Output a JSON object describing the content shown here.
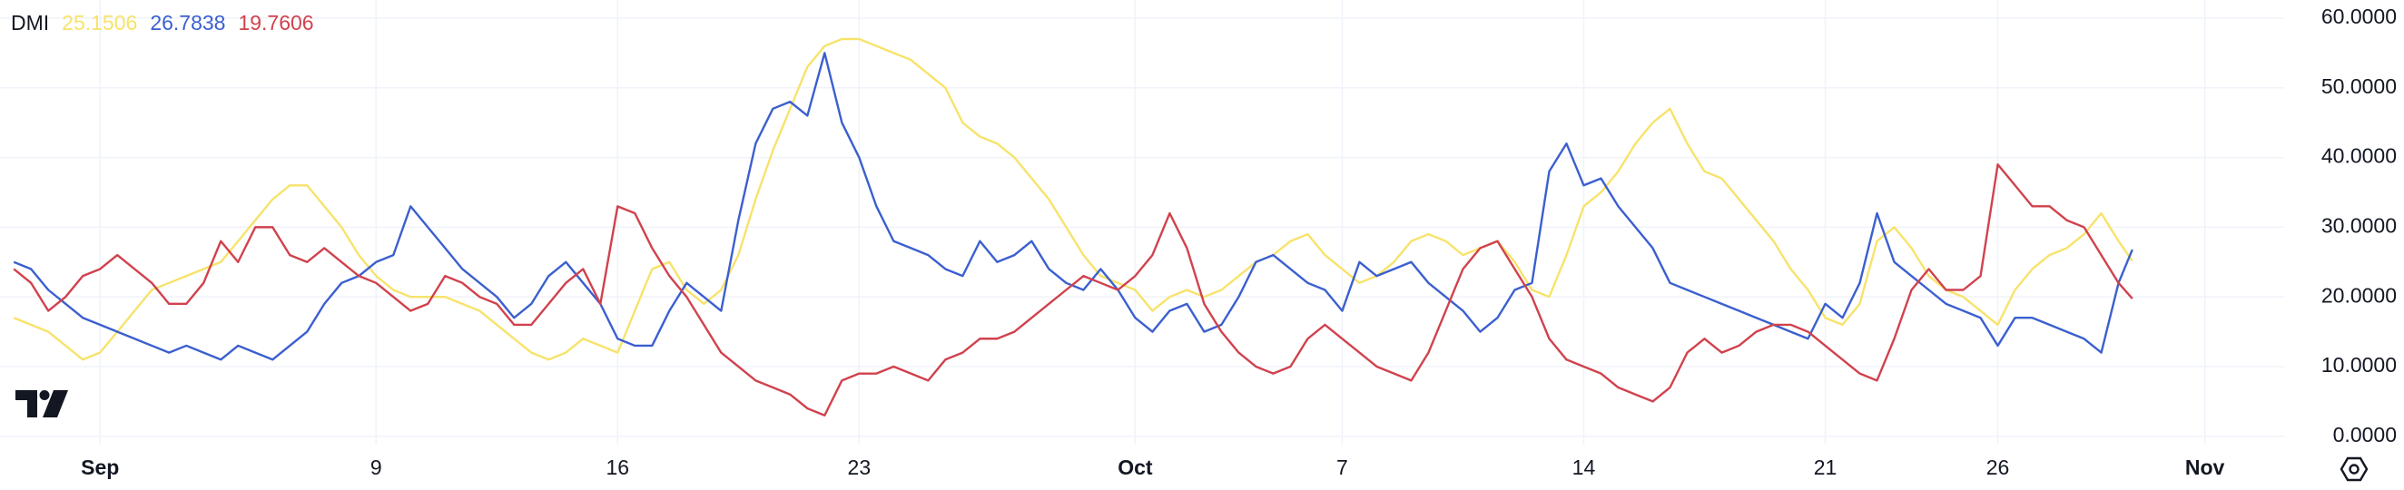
{
  "chart_data": {
    "type": "line",
    "title": "DMI",
    "x": [
      -2.5,
      -2,
      -1.5,
      -1,
      -0.5,
      0,
      0.5,
      1,
      1.5,
      2,
      2.5,
      3,
      3.5,
      4,
      4.5,
      5,
      5.5,
      6,
      6.5,
      7,
      7.5,
      8,
      8.5,
      9,
      9.5,
      10,
      10.5,
      11,
      11.5,
      12,
      12.5,
      13,
      13.5,
      14,
      14.5,
      15,
      15.5,
      16,
      16.5,
      17,
      17.5,
      18,
      18.5,
      19,
      19.5,
      20,
      20.5,
      21,
      21.5,
      22,
      22.5,
      23,
      23.5,
      24,
      24.5,
      25,
      25.5,
      26,
      26.5,
      27,
      27.5,
      28,
      28.5,
      29,
      29.5,
      30,
      30.5,
      31,
      31.5,
      32,
      32.5,
      33,
      33.5,
      34,
      34.5,
      35,
      35.5,
      36,
      36.5,
      37,
      37.5,
      38,
      38.5,
      39,
      39.5,
      40,
      40.5,
      41,
      41.5,
      42,
      42.5,
      43,
      43.5,
      44,
      44.5,
      45,
      45.5,
      46,
      46.5,
      47,
      47.5,
      48,
      48.5,
      49,
      49.5,
      50,
      50.5,
      51,
      51.5,
      52,
      52.5,
      53,
      53.5,
      54,
      54.5,
      55,
      55.5,
      56,
      56.5,
      57,
      57.5,
      58,
      58.5,
      58.9
    ],
    "series": [
      {
        "color": "#f7e36b",
        "values": [
          17,
          16,
          15,
          13,
          11,
          12,
          15,
          18,
          21,
          22,
          23,
          24,
          25,
          28,
          31,
          34,
          36,
          36,
          33,
          30,
          26,
          23,
          21,
          20,
          20,
          20,
          19,
          18,
          16,
          14,
          12,
          11,
          12,
          14,
          13,
          12,
          18,
          24,
          25,
          21,
          19,
          21,
          26,
          34,
          41,
          47,
          53,
          56,
          57,
          57,
          56,
          55,
          54,
          52,
          50,
          45,
          43,
          42,
          40,
          37,
          34,
          30,
          26,
          23,
          22,
          21,
          18,
          20,
          21,
          20,
          21,
          23,
          25,
          26,
          28,
          29,
          26,
          24,
          22,
          23,
          25,
          28,
          29,
          28,
          26,
          27,
          28,
          25,
          21,
          20,
          26,
          33,
          35,
          38,
          42,
          45,
          47,
          42,
          38,
          37,
          34,
          31,
          28,
          24,
          21,
          17,
          16,
          19,
          28,
          30,
          27,
          23,
          21,
          20,
          18,
          16,
          21,
          24,
          26,
          27,
          29,
          32,
          28,
          25.1506
        ]
      },
      {
        "color": "#3b5fcf",
        "values": [
          25,
          24,
          21,
          19,
          17,
          16,
          15,
          14,
          13,
          12,
          13,
          12,
          11,
          13,
          12,
          11,
          13,
          15,
          19,
          22,
          23,
          25,
          26,
          33,
          30,
          27,
          24,
          22,
          20,
          17,
          19,
          23,
          25,
          22,
          19,
          14,
          13,
          13,
          18,
          22,
          20,
          18,
          31,
          42,
          47,
          48,
          46,
          55,
          45,
          40,
          33,
          28,
          27,
          26,
          24,
          23,
          28,
          25,
          26,
          28,
          24,
          22,
          21,
          24,
          21,
          17,
          15,
          18,
          19,
          15,
          16,
          20,
          25,
          26,
          24,
          22,
          21,
          18,
          25,
          23,
          24,
          25,
          22,
          20,
          18,
          15,
          17,
          21,
          22,
          38,
          42,
          36,
          37,
          33,
          30,
          27,
          22,
          21,
          20,
          19,
          18,
          17,
          16,
          15,
          14,
          19,
          17,
          22,
          32,
          25,
          23,
          21,
          19,
          18,
          17,
          13,
          17,
          17,
          16,
          15,
          14,
          12,
          22,
          26.7838
        ]
      },
      {
        "color": "#d0424d",
        "values": [
          24,
          22,
          18,
          20,
          23,
          24,
          26,
          24,
          22,
          19,
          19,
          22,
          28,
          25,
          30,
          30,
          26,
          25,
          27,
          25,
          23,
          22,
          20,
          18,
          19,
          23,
          22,
          20,
          19,
          16,
          16,
          19,
          22,
          24,
          19,
          33,
          32,
          27,
          23,
          20,
          16,
          12,
          10,
          8,
          7,
          6,
          4,
          3,
          8,
          9,
          9,
          10,
          9,
          8,
          11,
          12,
          14,
          14,
          15,
          17,
          19,
          21,
          23,
          22,
          21,
          23,
          26,
          32,
          27,
          19,
          15,
          12,
          10,
          9,
          10,
          14,
          16,
          14,
          12,
          10,
          9,
          8,
          12,
          18,
          24,
          27,
          28,
          24,
          20,
          14,
          11,
          10,
          9,
          7,
          6,
          5,
          7,
          12,
          14,
          12,
          13,
          15,
          16,
          16,
          15,
          13,
          11,
          9,
          8,
          14,
          21,
          24,
          21,
          21,
          23,
          39,
          36,
          33,
          33,
          31,
          30,
          26,
          22,
          19.7606
        ]
      }
    ],
    "xlim": [
      -2.9,
      63.3
    ],
    "xticks": [
      {
        "value": 0,
        "label": "Sep"
      },
      {
        "value": 8,
        "label": "9"
      },
      {
        "value": 15,
        "label": "16"
      },
      {
        "value": 22,
        "label": "23"
      },
      {
        "value": 30,
        "label": "Oct"
      },
      {
        "value": 36,
        "label": "7"
      },
      {
        "value": 43,
        "label": "14"
      },
      {
        "value": 50,
        "label": "21"
      },
      {
        "value": 55,
        "label": "26"
      },
      {
        "value": 61,
        "label": "Nov"
      }
    ],
    "ylim": [
      -1.2,
      62.6
    ],
    "yticks": [
      {
        "value": 0,
        "label": "0.0000"
      },
      {
        "value": 10,
        "label": "10.0000"
      },
      {
        "value": 20,
        "label": "20.0000"
      },
      {
        "value": 30,
        "label": "30.0000"
      },
      {
        "value": 40,
        "label": "40.0000"
      },
      {
        "value": 50,
        "label": "50.0000"
      },
      {
        "value": 60,
        "label": "60.0000"
      }
    ],
    "grid": true
  }
}
